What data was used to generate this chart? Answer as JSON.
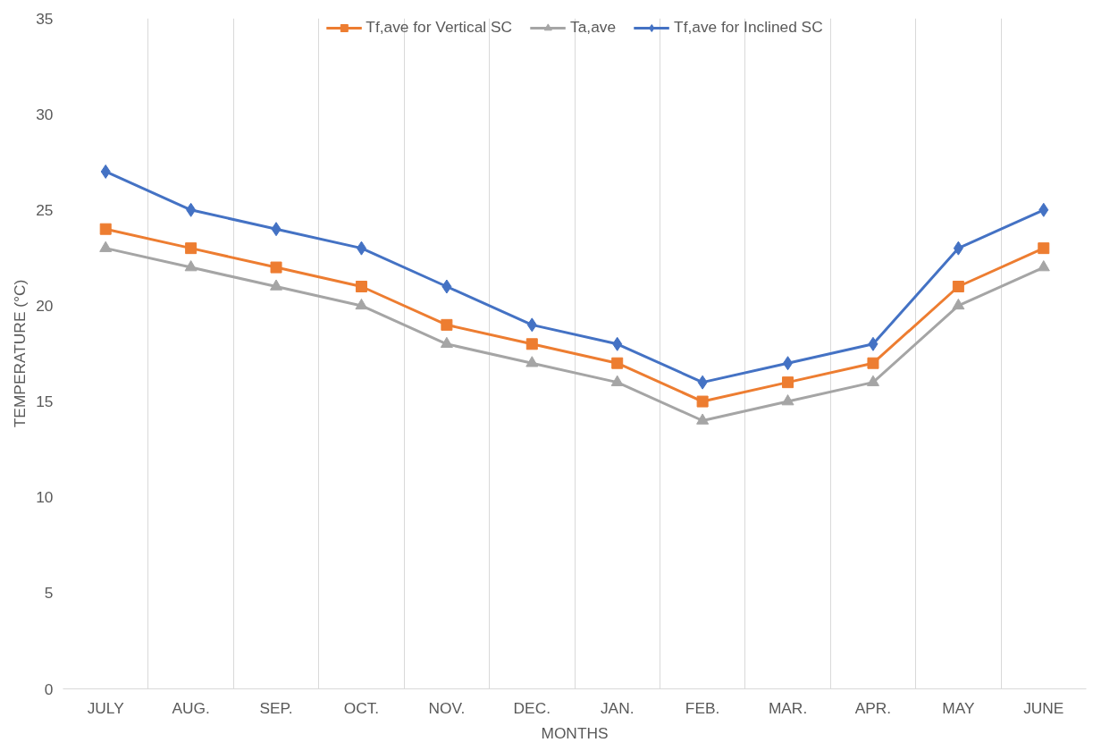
{
  "chart_data": {
    "type": "line",
    "xlabel": "MONTHS",
    "ylabel": "TEMPERATURE (°C)",
    "categories": [
      "JULY",
      "AUG.",
      "SEP.",
      "OCT.",
      "NOV.",
      "DEC.",
      "JAN.",
      "FEB.",
      "MAR.",
      "APR.",
      "MAY",
      "JUNE"
    ],
    "series": [
      {
        "name": "Tf,ave for Vertical SC",
        "color": "#ed7d31",
        "marker": "square",
        "values": [
          24,
          23,
          22,
          21,
          19,
          18,
          17,
          15,
          16,
          17,
          21,
          23
        ]
      },
      {
        "name": "Ta,ave",
        "color": "#a5a5a5",
        "marker": "triangle",
        "values": [
          23,
          22,
          21,
          20,
          18,
          17,
          16,
          14,
          15,
          16,
          20,
          22
        ]
      },
      {
        "name": "Tf,ave for Inclined SC",
        "color": "#4472c4",
        "marker": "diamond",
        "values": [
          27,
          25,
          24,
          23,
          21,
          19,
          18,
          16,
          17,
          18,
          23,
          25
        ]
      }
    ],
    "ylim": [
      0,
      35
    ],
    "yticks": [
      0,
      5,
      10,
      15,
      20,
      25,
      30,
      35
    ],
    "grid": "x",
    "legend": "top",
    "line_style": "solid"
  }
}
